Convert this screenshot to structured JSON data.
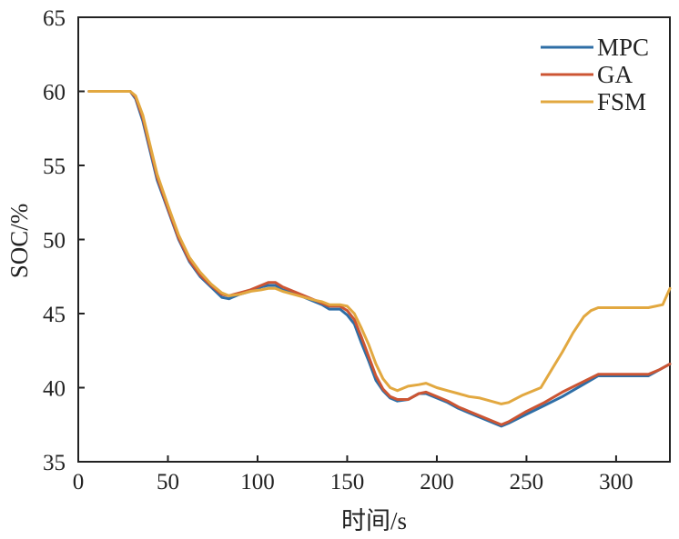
{
  "chart_data": {
    "type": "line",
    "title": "",
    "xlabel": "时间/s",
    "ylabel": "SOC/%",
    "xlim": [
      0,
      330
    ],
    "ylim": [
      35,
      65
    ],
    "xticks": [
      0,
      50,
      100,
      150,
      200,
      250,
      300
    ],
    "yticks": [
      35,
      40,
      45,
      50,
      55,
      60,
      65
    ],
    "grid": false,
    "legend": "top-right",
    "series": [
      {
        "name": "MPC",
        "color": "#2e6ea6",
        "points": [
          [
            6,
            60
          ],
          [
            29,
            60
          ],
          [
            32,
            59.5
          ],
          [
            36,
            58
          ],
          [
            40,
            56
          ],
          [
            44,
            54
          ],
          [
            50,
            52
          ],
          [
            56,
            50
          ],
          [
            62,
            48.5
          ],
          [
            68,
            47.5
          ],
          [
            74,
            46.8
          ],
          [
            80,
            46.1
          ],
          [
            84,
            46.0
          ],
          [
            90,
            46.3
          ],
          [
            96,
            46.5
          ],
          [
            102,
            46.8
          ],
          [
            106,
            46.9
          ],
          [
            110,
            46.9
          ],
          [
            114,
            46.6
          ],
          [
            120,
            46.4
          ],
          [
            126,
            46.1
          ],
          [
            132,
            45.8
          ],
          [
            136,
            45.6
          ],
          [
            140,
            45.3
          ],
          [
            146,
            45.3
          ],
          [
            150,
            44.9
          ],
          [
            154,
            44.3
          ],
          [
            158,
            43.0
          ],
          [
            162,
            41.8
          ],
          [
            166,
            40.5
          ],
          [
            170,
            39.8
          ],
          [
            174,
            39.3
          ],
          [
            178,
            39.1
          ],
          [
            184,
            39.2
          ],
          [
            190,
            39.6
          ],
          [
            194,
            39.6
          ],
          [
            200,
            39.3
          ],
          [
            206,
            39.0
          ],
          [
            212,
            38.6
          ],
          [
            218,
            38.3
          ],
          [
            224,
            38.0
          ],
          [
            230,
            37.7
          ],
          [
            236,
            37.4
          ],
          [
            240,
            37.6
          ],
          [
            250,
            38.2
          ],
          [
            260,
            38.8
          ],
          [
            270,
            39.4
          ],
          [
            280,
            40.1
          ],
          [
            290,
            40.8
          ],
          [
            300,
            40.8
          ],
          [
            310,
            40.8
          ],
          [
            318,
            40.8
          ],
          [
            324,
            41.2
          ],
          [
            330,
            41.6
          ]
        ]
      },
      {
        "name": "GA",
        "color": "#cc5533",
        "points": [
          [
            6,
            60
          ],
          [
            29,
            60
          ],
          [
            32,
            59.6
          ],
          [
            36,
            58.2
          ],
          [
            40,
            56.2
          ],
          [
            44,
            54.2
          ],
          [
            50,
            52.1
          ],
          [
            56,
            50.1
          ],
          [
            62,
            48.6
          ],
          [
            68,
            47.6
          ],
          [
            74,
            46.9
          ],
          [
            80,
            46.3
          ],
          [
            84,
            46.2
          ],
          [
            90,
            46.4
          ],
          [
            96,
            46.6
          ],
          [
            102,
            46.9
          ],
          [
            106,
            47.1
          ],
          [
            110,
            47.1
          ],
          [
            114,
            46.8
          ],
          [
            120,
            46.5
          ],
          [
            126,
            46.2
          ],
          [
            132,
            45.9
          ],
          [
            136,
            45.7
          ],
          [
            140,
            45.5
          ],
          [
            146,
            45.5
          ],
          [
            150,
            45.2
          ],
          [
            154,
            44.6
          ],
          [
            158,
            43.4
          ],
          [
            162,
            42.1
          ],
          [
            166,
            40.8
          ],
          [
            170,
            39.9
          ],
          [
            174,
            39.4
          ],
          [
            178,
            39.2
          ],
          [
            184,
            39.2
          ],
          [
            190,
            39.6
          ],
          [
            194,
            39.7
          ],
          [
            200,
            39.4
          ],
          [
            206,
            39.1
          ],
          [
            212,
            38.7
          ],
          [
            218,
            38.4
          ],
          [
            224,
            38.1
          ],
          [
            230,
            37.8
          ],
          [
            236,
            37.5
          ],
          [
            240,
            37.7
          ],
          [
            250,
            38.4
          ],
          [
            260,
            39.0
          ],
          [
            270,
            39.7
          ],
          [
            280,
            40.3
          ],
          [
            290,
            40.9
          ],
          [
            300,
            40.9
          ],
          [
            310,
            40.9
          ],
          [
            318,
            40.9
          ],
          [
            324,
            41.2
          ],
          [
            330,
            41.6
          ]
        ]
      },
      {
        "name": "FSM",
        "color": "#e2a840",
        "points": [
          [
            6,
            60
          ],
          [
            29,
            60
          ],
          [
            32,
            59.7
          ],
          [
            36,
            58.4
          ],
          [
            40,
            56.4
          ],
          [
            44,
            54.4
          ],
          [
            50,
            52.3
          ],
          [
            56,
            50.3
          ],
          [
            62,
            48.8
          ],
          [
            68,
            47.8
          ],
          [
            74,
            47.0
          ],
          [
            80,
            46.4
          ],
          [
            84,
            46.2
          ],
          [
            90,
            46.3
          ],
          [
            96,
            46.5
          ],
          [
            102,
            46.6
          ],
          [
            106,
            46.7
          ],
          [
            110,
            46.7
          ],
          [
            114,
            46.5
          ],
          [
            120,
            46.3
          ],
          [
            126,
            46.1
          ],
          [
            132,
            45.9
          ],
          [
            136,
            45.8
          ],
          [
            140,
            45.6
          ],
          [
            146,
            45.6
          ],
          [
            150,
            45.5
          ],
          [
            154,
            45.0
          ],
          [
            158,
            44.0
          ],
          [
            162,
            42.9
          ],
          [
            166,
            41.6
          ],
          [
            170,
            40.6
          ],
          [
            174,
            40.0
          ],
          [
            178,
            39.8
          ],
          [
            184,
            40.1
          ],
          [
            190,
            40.2
          ],
          [
            194,
            40.3
          ],
          [
            200,
            40.0
          ],
          [
            206,
            39.8
          ],
          [
            212,
            39.6
          ],
          [
            218,
            39.4
          ],
          [
            224,
            39.3
          ],
          [
            230,
            39.1
          ],
          [
            236,
            38.9
          ],
          [
            240,
            39.0
          ],
          [
            248,
            39.5
          ],
          [
            258,
            40.0
          ],
          [
            264,
            41.2
          ],
          [
            270,
            42.4
          ],
          [
            276,
            43.7
          ],
          [
            282,
            44.8
          ],
          [
            286,
            45.2
          ],
          [
            290,
            45.4
          ],
          [
            300,
            45.4
          ],
          [
            310,
            45.4
          ],
          [
            318,
            45.4
          ],
          [
            322,
            45.5
          ],
          [
            326,
            45.6
          ],
          [
            330,
            46.7
          ]
        ]
      }
    ]
  }
}
